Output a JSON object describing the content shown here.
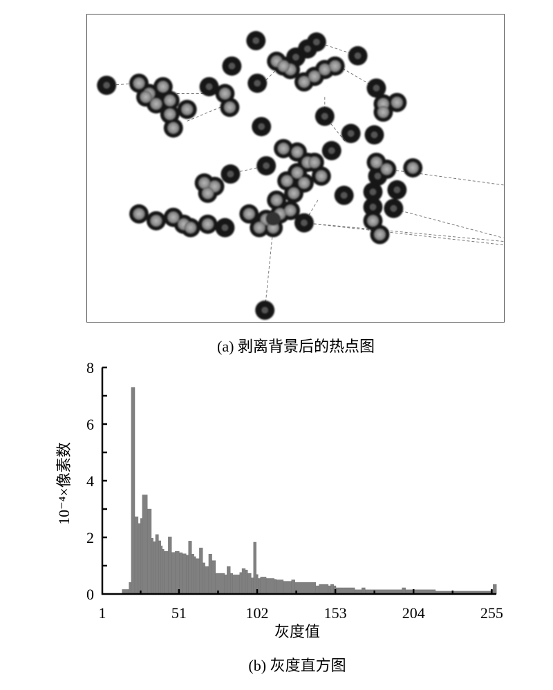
{
  "figure_a": {
    "caption": "(a) 剥离背景后的热点图"
  },
  "figure_b": {
    "caption": "(b) 灰度直方图"
  },
  "chart_data": {
    "type": "bar",
    "title": "",
    "xlabel": "灰度值",
    "ylabel": "10⁻⁴×像素数",
    "xlim": [
      1,
      258
    ],
    "ylim": [
      0,
      8
    ],
    "x_ticks": [
      "1",
      "51",
      "102",
      "153",
      "204",
      "255"
    ],
    "x_tick_values": [
      1,
      51,
      102,
      153,
      204,
      255
    ],
    "y_ticks": [
      "0",
      "2",
      "4",
      "6",
      "8"
    ],
    "y_tick_values": [
      0,
      2,
      4,
      6,
      8
    ],
    "grid": false,
    "bar_color": "#808080",
    "bins": [
      [
        13.9,
        18.4,
        0.16
      ],
      [
        18.4,
        19.9,
        0.41
      ],
      [
        19.9,
        22.2,
        7.3
      ],
      [
        22.2,
        24.4,
        2.73
      ],
      [
        24.4,
        25.9,
        2.49
      ],
      [
        25.9,
        27.1,
        2.67
      ],
      [
        27.1,
        30.4,
        3.5
      ],
      [
        30.4,
        33.0,
        3.0
      ],
      [
        33.0,
        34.2,
        1.97
      ],
      [
        34.2,
        35.7,
        1.85
      ],
      [
        35.7,
        37.7,
        2.1
      ],
      [
        37.7,
        39.2,
        1.88
      ],
      [
        39.2,
        40.2,
        1.7
      ],
      [
        40.2,
        41.3,
        1.58
      ],
      [
        41.3,
        44.0,
        1.51
      ],
      [
        44.0,
        46.2,
        2.02
      ],
      [
        46.2,
        48.5,
        1.47
      ],
      [
        48.5,
        51.2,
        1.51
      ],
      [
        51.2,
        53.3,
        1.46
      ],
      [
        53.3,
        55.7,
        1.42
      ],
      [
        55.7,
        57.2,
        1.37
      ],
      [
        57.2,
        59.3,
        1.87
      ],
      [
        59.3,
        60.8,
        1.41
      ],
      [
        60.8,
        62.0,
        1.32
      ],
      [
        62.0,
        64.3,
        1.25
      ],
      [
        64.3,
        66.5,
        1.63
      ],
      [
        66.5,
        68.0,
        1.1
      ],
      [
        68.0,
        70.4,
        0.97
      ],
      [
        70.4,
        72.5,
        1.41
      ],
      [
        72.5,
        74.9,
        1.18
      ],
      [
        74.9,
        80.8,
        0.73
      ],
      [
        80.8,
        82.3,
        0.68
      ],
      [
        82.3,
        84.5,
        0.97
      ],
      [
        84.5,
        86.1,
        0.73
      ],
      [
        86.1,
        90.6,
        0.68
      ],
      [
        90.6,
        92.1,
        0.76
      ],
      [
        92.1,
        94.3,
        0.9
      ],
      [
        94.3,
        95.8,
        0.85
      ],
      [
        95.8,
        98.1,
        0.73
      ],
      [
        98.1,
        99.6,
        0.57
      ],
      [
        99.6,
        101.4,
        1.83
      ],
      [
        101.4,
        102.6,
        0.69
      ],
      [
        102.6,
        104.1,
        0.55
      ],
      [
        104.1,
        107.9,
        0.6
      ],
      [
        107.9,
        113.1,
        0.55
      ],
      [
        113.1,
        114.6,
        0.52
      ],
      [
        114.6,
        119.1,
        0.5
      ],
      [
        119.1,
        124.4,
        0.45
      ],
      [
        124.4,
        126.7,
        0.5
      ],
      [
        126.7,
        140.2,
        0.41
      ],
      [
        140.2,
        142.4,
        0.29
      ],
      [
        142.4,
        148.4,
        0.34
      ],
      [
        148.4,
        149.9,
        0.29
      ],
      [
        149.9,
        151.9,
        0.34
      ],
      [
        151.9,
        153.4,
        0.29
      ],
      [
        153.4,
        165.7,
        0.22
      ],
      [
        165.7,
        170.2,
        0.15
      ],
      [
        170.2,
        172.5,
        0.22
      ],
      [
        172.5,
        196.5,
        0.15
      ],
      [
        196.5,
        198.8,
        0.22
      ],
      [
        198.8,
        218.3,
        0.15
      ],
      [
        218.3,
        254.4,
        0.1
      ],
      [
        254.4,
        255.9,
        0.15
      ],
      [
        255.9,
        258.1,
        0.34
      ]
    ]
  }
}
